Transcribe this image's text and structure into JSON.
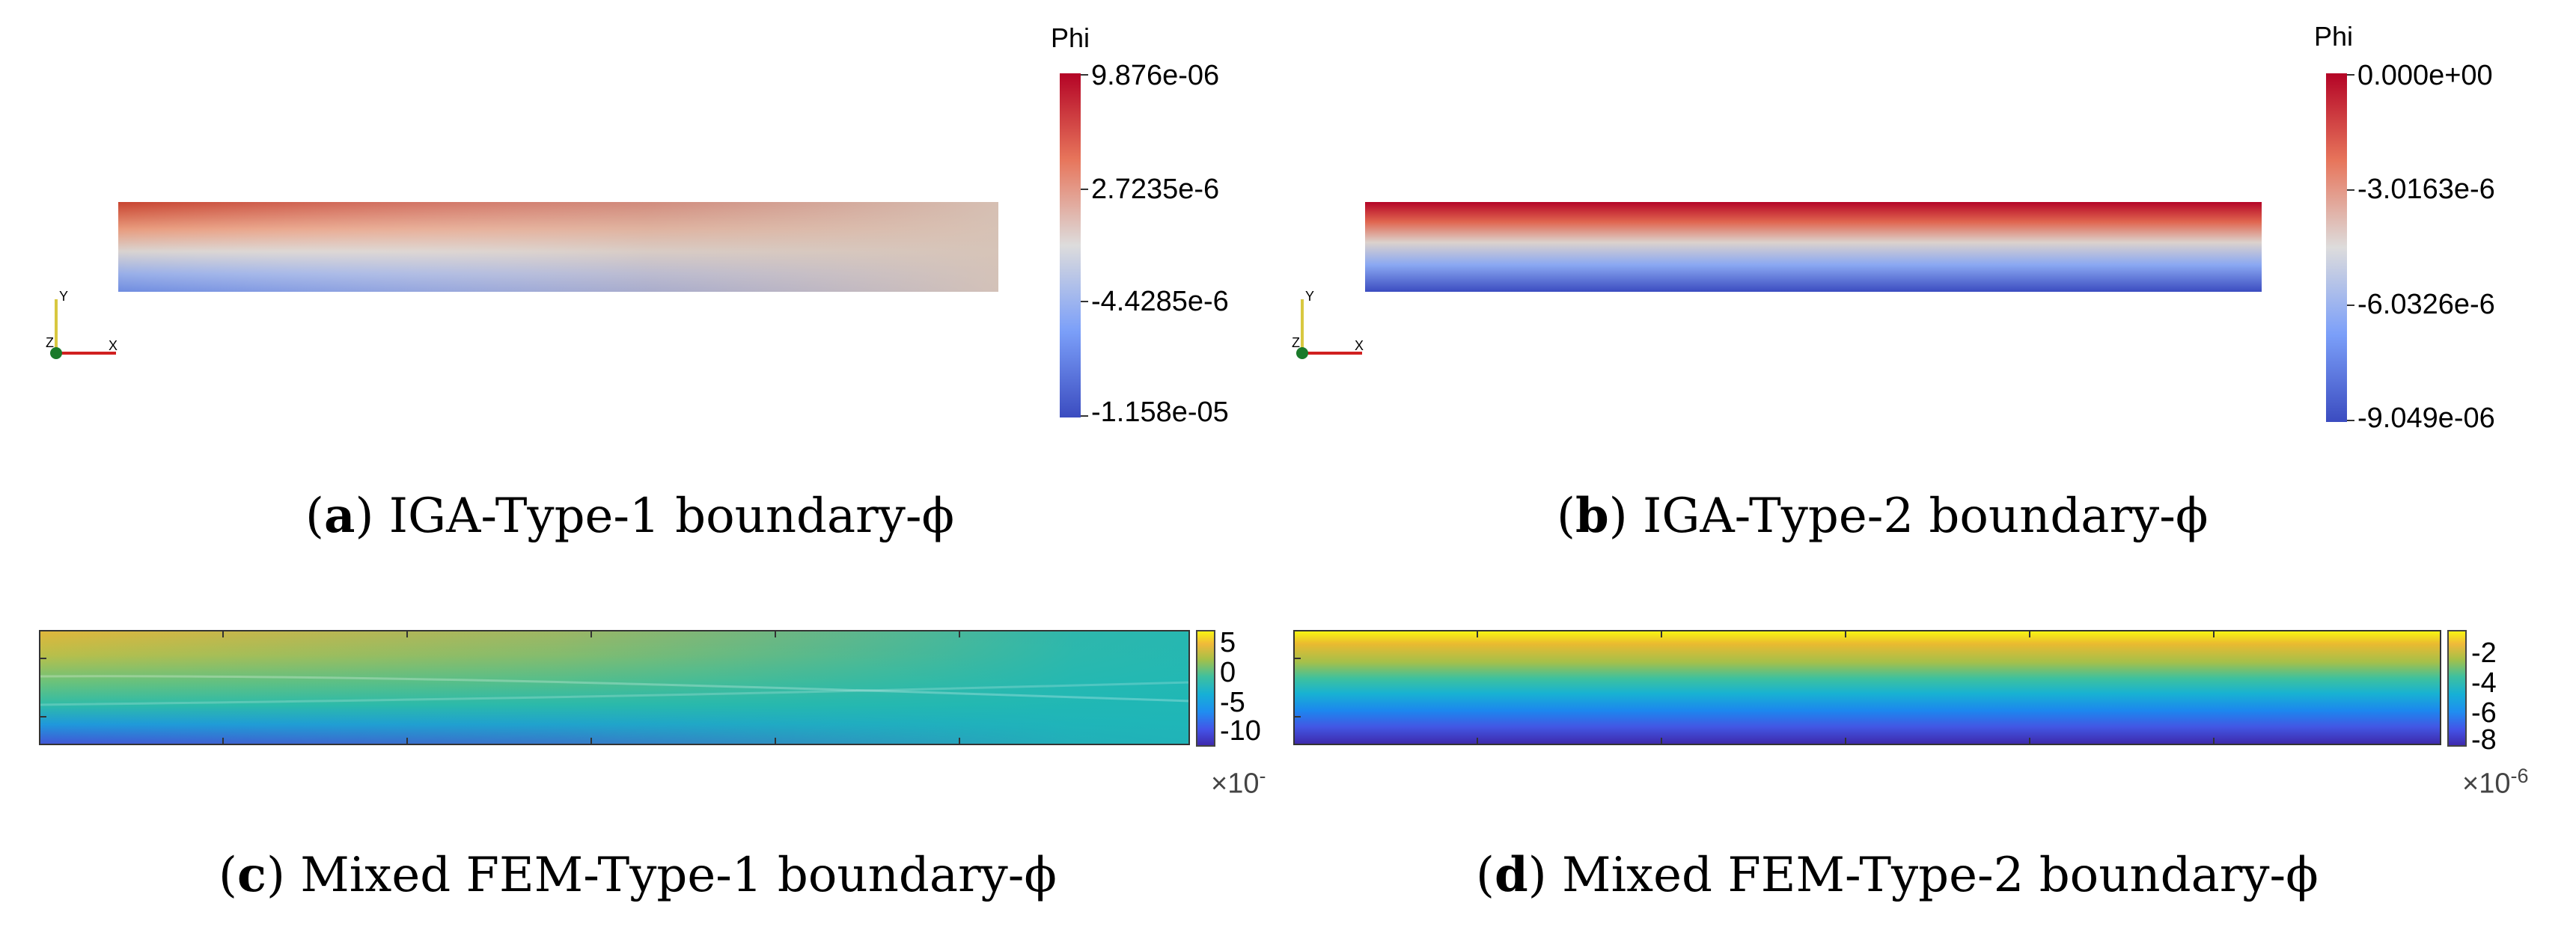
{
  "colors": {
    "cool_blue": "#3b4cc0",
    "warm_red": "#b40426",
    "neutral_gray": "#d8c9bd",
    "parula_dark": "#3e26a8",
    "parula_yellow": "#f9fb0e"
  },
  "panels": [
    {
      "id": "a",
      "renderer": "paraview",
      "caption_letter": "a",
      "caption_text": "IGA-Type-1 boundary-ϕ",
      "colorbar_title": "Phi",
      "colorbar_labels": [
        "9.876e-06",
        "2.7235e-6",
        "-4.4285e-6",
        "-1.158e-05"
      ],
      "axes_labels": {
        "y": "Y",
        "z": "Z",
        "x": "X"
      }
    },
    {
      "id": "b",
      "renderer": "paraview",
      "caption_letter": "b",
      "caption_text": "IGA-Type-2 boundary-ϕ",
      "colorbar_title": "Phi",
      "colorbar_labels": [
        "0.000e+00",
        "-3.0163e-6",
        "-6.0326e-6",
        "-9.049e-06"
      ],
      "axes_labels": {
        "y": "Y",
        "z": "Z",
        "x": "X"
      }
    },
    {
      "id": "c",
      "renderer": "matlab",
      "caption_letter": "c",
      "caption_text": "Mixed FEM-Type-1 boundary-ϕ",
      "colorbar_ticks": [
        "5",
        "0",
        "-5",
        "-10"
      ],
      "exponent_base": "×10",
      "exponent_power": "-"
    },
    {
      "id": "d",
      "renderer": "matlab",
      "caption_letter": "d",
      "caption_text": "Mixed FEM-Type-2 boundary-ϕ",
      "colorbar_ticks": [
        "-2",
        "-4",
        "-6",
        "-8"
      ],
      "exponent_base": "×10",
      "exponent_power": "-6"
    }
  ]
}
